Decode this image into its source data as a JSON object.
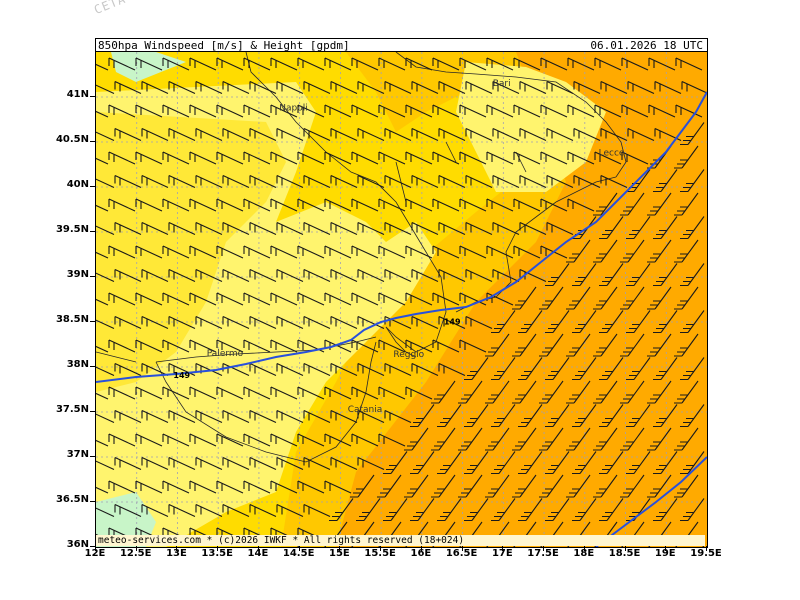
{
  "watermark": "CETA - M",
  "header": {
    "title": "850hpa_Windspeed_[m/s]_&_Height_[gpdm]",
    "datetime": "06.01.2026  18  UTC"
  },
  "footer": "meteo-services.com * (c)2026 IWKF * All rights reserved (18+024)",
  "axes": {
    "lat_labels": [
      "41N",
      "40.5N",
      "40N",
      "39.5N",
      "39N",
      "38.5N",
      "38N",
      "37.5N",
      "37N",
      "36.5N",
      "36N"
    ],
    "lon_labels": [
      "12E",
      "12.5E",
      "13E",
      "13.5E",
      "14E",
      "14.5E",
      "15E",
      "15.5E",
      "16E",
      "16.5E",
      "17E",
      "17.5E",
      "18E",
      "18.5E",
      "19E",
      "19.5E"
    ],
    "lat_range": [
      36,
      41.5
    ],
    "lon_range": [
      12,
      19.5
    ]
  },
  "cities": [
    {
      "name": "Napoli",
      "lon": 14.25,
      "lat": 40.85
    },
    {
      "name": "Bari",
      "lon": 16.87,
      "lat": 41.12
    },
    {
      "name": "Lecce",
      "lon": 18.17,
      "lat": 40.35
    },
    {
      "name": "Palermo",
      "lon": 13.36,
      "lat": 38.12
    },
    {
      "name": "Catania",
      "lon": 15.09,
      "lat": 37.5
    },
    {
      "name": "Reggio",
      "lon": 15.65,
      "lat": 38.11
    }
  ],
  "contours": [
    {
      "label": "149",
      "lon": 12.95,
      "lat": 37.88
    },
    {
      "label": "149",
      "lon": 16.27,
      "lat": 38.47
    }
  ],
  "colors": {
    "green": "#c8f5c8",
    "pale_yellow": "#fff46e",
    "yellow": "#ffdc00",
    "gold": "#ffc800",
    "orange": "#ffaa00",
    "contour": "#2850dc",
    "coast": "#282828",
    "grid": "#a0a0b4"
  }
}
